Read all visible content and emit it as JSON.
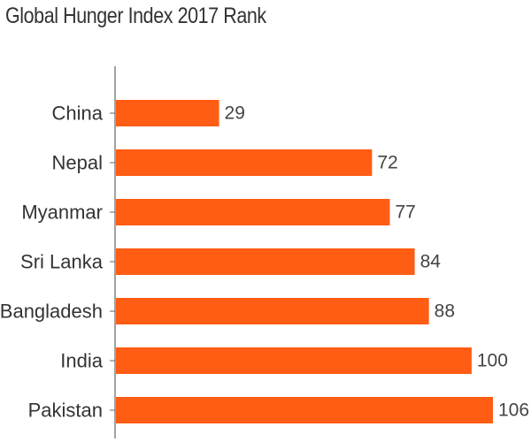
{
  "chart_data": {
    "type": "bar",
    "orientation": "horizontal",
    "title": "Global Hunger Index 2017 Rank",
    "categories": [
      "China",
      "Nepal",
      "Myanmar",
      "Sri Lanka",
      "Bangladesh",
      "India",
      "Pakistan"
    ],
    "values": [
      29,
      72,
      77,
      84,
      88,
      100,
      106
    ],
    "data_labels": [
      "29",
      "72",
      "77",
      "84",
      "88",
      "100",
      "106"
    ],
    "xlim": [
      0,
      106
    ],
    "grid": false,
    "bar_color": "#ff5c14"
  }
}
